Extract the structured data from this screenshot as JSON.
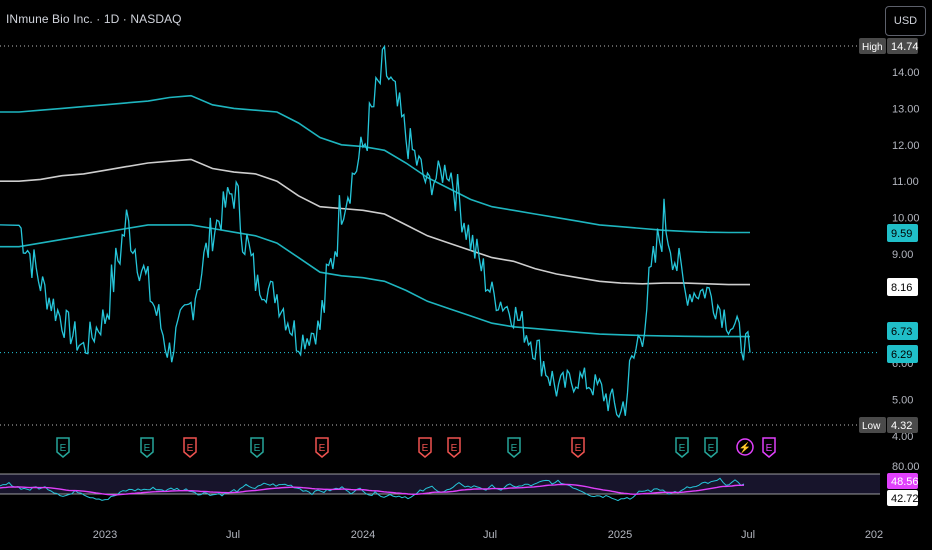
{
  "header": {
    "title": "INmune Bio Inc. · 1D · NASDAQ",
    "currency_button": "USD"
  },
  "colors": {
    "background": "#000000",
    "price_line": "#26c6da",
    "bollinger_outer": "#20bfc9",
    "moving_average": "#d9d9d9",
    "rsi_line": "#26c6da",
    "rsi_ma": "#e040fb",
    "earnings_up": "#26a69a",
    "earnings_down": "#ef5350",
    "earnings_upcoming": "#e040fb",
    "high_low_label_bg": "#4a4a4a",
    "last_price_dotted": "#26c6da"
  },
  "price_axis": {
    "ticks": [
      "14.00",
      "13.00",
      "12.00",
      "11.00",
      "10.00",
      "9.00",
      "7.00",
      "6.00",
      "5.00",
      "4.00"
    ],
    "high": {
      "label": "High",
      "value": "14.74"
    },
    "low": {
      "label": "Low",
      "value": "4.32"
    },
    "value_tags": [
      {
        "value": "9.59",
        "style": "teal"
      },
      {
        "value": "8.16",
        "style": "white"
      },
      {
        "value": "6.73",
        "style": "teal"
      },
      {
        "value": "6.29",
        "style": "teal"
      }
    ]
  },
  "rsi_axis": {
    "top_tick": "80.00",
    "rsi_ma_value": "48.56",
    "rsi_value": "42.72"
  },
  "time_axis": {
    "labels": [
      "2023",
      "Jul",
      "2024",
      "Jul",
      "2025",
      "Jul",
      "202"
    ]
  },
  "events": [
    {
      "label": "E",
      "kind": "earnings_up"
    },
    {
      "label": "E",
      "kind": "earnings_up"
    },
    {
      "label": "E",
      "kind": "earnings_down"
    },
    {
      "label": "E",
      "kind": "earnings_up"
    },
    {
      "label": "E",
      "kind": "earnings_down"
    },
    {
      "label": "E",
      "kind": "earnings_down"
    },
    {
      "label": "E",
      "kind": "earnings_down"
    },
    {
      "label": "E",
      "kind": "earnings_up"
    },
    {
      "label": "E",
      "kind": "earnings_down"
    },
    {
      "label": "E",
      "kind": "earnings_up"
    },
    {
      "label": "E",
      "kind": "earnings_up"
    },
    {
      "label": "⚡",
      "kind": "split"
    },
    {
      "label": "E",
      "kind": "upcoming"
    }
  ],
  "chart_data": {
    "type": "line",
    "x_unit": "date",
    "x_range": [
      "2022-09",
      "2026-01"
    ],
    "ylim": [
      4.0,
      15.0
    ],
    "price_series": {
      "x": [
        "2022-09-01",
        "2022-10-01",
        "2022-11-01",
        "2022-12-01",
        "2023-01-01",
        "2023-02-01",
        "2023-03-01",
        "2023-04-01",
        "2023-05-01",
        "2023-06-01",
        "2023-07-01",
        "2023-08-01",
        "2023-09-01",
        "2023-10-01",
        "2023-11-01",
        "2023-12-01",
        "2024-01-01",
        "2024-02-01",
        "2024-03-01",
        "2024-04-01",
        "2024-05-01",
        "2024-06-01",
        "2024-07-01",
        "2024-08-01",
        "2024-09-01",
        "2024-10-01",
        "2024-11-01",
        "2024-12-01",
        "2025-01-01",
        "2025-02-01",
        "2025-03-01",
        "2025-04-01",
        "2025-05-01",
        "2025-06-01",
        "2025-07-01"
      ],
      "y": [
        9.8,
        8.2,
        7.2,
        6.4,
        7.3,
        9.9,
        8.1,
        6.3,
        7.6,
        9.6,
        10.8,
        8.2,
        7.9,
        6.6,
        7.0,
        10.3,
        11.9,
        14.2,
        12.2,
        10.9,
        11.4,
        9.4,
        7.9,
        7.4,
        6.5,
        5.3,
        5.6,
        5.3,
        4.6,
        7.1,
        10.0,
        7.9,
        8.0,
        7.2,
        6.29
      ]
    },
    "series": [
      {
        "name": "",
        "role": "bollinger_upper",
        "y": [
          12.9,
          12.95,
          13.0,
          13.05,
          13.1,
          13.15,
          13.2,
          13.3,
          13.35,
          13.1,
          13.0,
          12.95,
          12.9,
          12.6,
          12.2,
          12.0,
          11.95,
          11.85,
          11.5,
          11.1,
          10.8,
          10.5,
          10.3,
          10.2,
          10.1,
          10.0,
          9.9,
          9.8,
          9.75,
          9.7,
          9.65,
          9.62,
          9.6,
          9.59,
          9.59
        ]
      },
      {
        "name": "",
        "role": "moving_average",
        "y": [
          11.0,
          11.05,
          11.15,
          11.2,
          11.3,
          11.4,
          11.5,
          11.55,
          11.6,
          11.35,
          11.25,
          11.2,
          11.0,
          10.6,
          10.3,
          10.25,
          10.2,
          10.1,
          9.8,
          9.5,
          9.3,
          9.1,
          8.9,
          8.8,
          8.6,
          8.45,
          8.35,
          8.25,
          8.2,
          8.18,
          8.2,
          8.2,
          8.18,
          8.16,
          8.16
        ]
      },
      {
        "name": "",
        "role": "bollinger_lower",
        "y": [
          9.2,
          9.3,
          9.4,
          9.5,
          9.6,
          9.7,
          9.8,
          9.8,
          9.8,
          9.7,
          9.6,
          9.5,
          9.3,
          8.9,
          8.5,
          8.4,
          8.35,
          8.25,
          8.0,
          7.7,
          7.5,
          7.3,
          7.1,
          7.0,
          6.95,
          6.9,
          6.85,
          6.8,
          6.78,
          6.76,
          6.75,
          6.74,
          6.73,
          6.73,
          6.73
        ]
      }
    ],
    "rsi": {
      "ylim": [
        20,
        80
      ],
      "top_tick": "80.00",
      "last_rsi": "42.72",
      "last_rsi_ma": "48.56"
    }
  }
}
